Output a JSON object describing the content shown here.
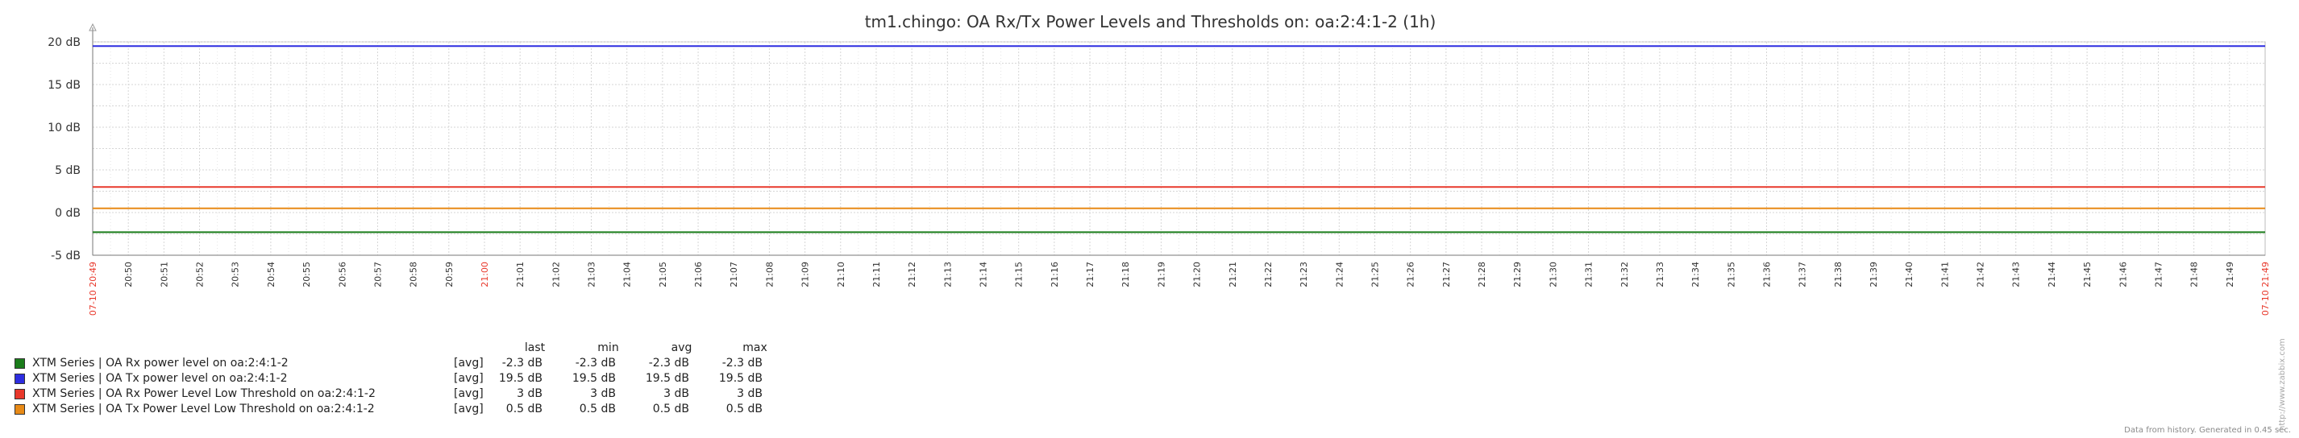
{
  "chart_data": {
    "type": "line",
    "title": "tm1.chingo: OA Rx/Tx Power Levels and Thresholds on: oa:2:4:1-2 (1h)",
    "y_ticks": [
      "20 dB",
      "15 dB",
      "10 dB",
      "5 dB",
      "0 dB",
      "-5 dB"
    ],
    "y_tick_values": [
      20,
      15,
      10,
      5,
      0,
      -5
    ],
    "ylim": [
      -5,
      20
    ],
    "x_ticks": [
      "07-10 20:49",
      "20:50",
      "20:51",
      "20:52",
      "20:53",
      "20:54",
      "20:55",
      "20:56",
      "20:57",
      "20:58",
      "20:59",
      "21:00",
      "21:01",
      "21:02",
      "21:03",
      "21:04",
      "21:05",
      "21:06",
      "21:07",
      "21:08",
      "21:09",
      "21:10",
      "21:11",
      "21:12",
      "21:13",
      "21:14",
      "21:15",
      "21:16",
      "21:17",
      "21:18",
      "21:19",
      "21:20",
      "21:21",
      "21:22",
      "21:23",
      "21:24",
      "21:25",
      "21:26",
      "21:27",
      "21:28",
      "21:29",
      "21:30",
      "21:31",
      "21:32",
      "21:33",
      "21:34",
      "21:35",
      "21:36",
      "21:37",
      "21:38",
      "21:39",
      "21:40",
      "21:41",
      "21:42",
      "21:43",
      "21:44",
      "21:45",
      "21:46",
      "21:47",
      "21:48",
      "21:49",
      "07-10 21:49"
    ],
    "x_tick_red": [
      0,
      11,
      61
    ],
    "grid": true,
    "series": [
      {
        "name": "XTM Series | OA Rx power level on oa:2:4:1-2",
        "color": "#1a7c1a",
        "value": -2.3
      },
      {
        "name": "XTM Series | OA Tx power level on oa:2:4:1-2",
        "color": "#2d2de0",
        "value": 19.5
      },
      {
        "name": "XTM Series | OA Rx Power Level Low Threshold on oa:2:4:1-2",
        "color": "#e8382b",
        "value": 3
      },
      {
        "name": "XTM Series | OA Tx Power Level Low Threshold on oa:2:4:1-2",
        "color": "#e88a17",
        "value": 0.5
      }
    ]
  },
  "legend": {
    "headers": [
      "last",
      "min",
      "avg",
      "max"
    ],
    "rows": [
      {
        "color": "#1a7c1a",
        "name": "XTM Series | OA Rx power level on oa:2:4:1-2",
        "func": "[avg]",
        "last": "-2.3 dB",
        "min": "-2.3 dB",
        "avg": "-2.3 dB",
        "max": "-2.3 dB"
      },
      {
        "color": "#2d2de0",
        "name": "XTM Series | OA Tx power level on oa:2:4:1-2",
        "func": "[avg]",
        "last": "19.5 dB",
        "min": "19.5 dB",
        "avg": "19.5 dB",
        "max": "19.5 dB"
      },
      {
        "color": "#e8382b",
        "name": "XTM Series | OA Rx Power Level Low Threshold on oa:2:4:1-2",
        "func": "[avg]",
        "last": "3 dB",
        "min": "3 dB",
        "avg": "3 dB",
        "max": "3 dB"
      },
      {
        "color": "#e88a17",
        "name": "XTM Series | OA Tx Power Level Low Threshold on oa:2:4:1-2",
        "func": "[avg]",
        "last": "0.5 dB",
        "min": "0.5 dB",
        "avg": "0.5 dB",
        "max": "0.5 dB"
      }
    ]
  },
  "footer": "Data from history. Generated in 0.45 sec.",
  "side_url": "http://www.zabbix.com"
}
